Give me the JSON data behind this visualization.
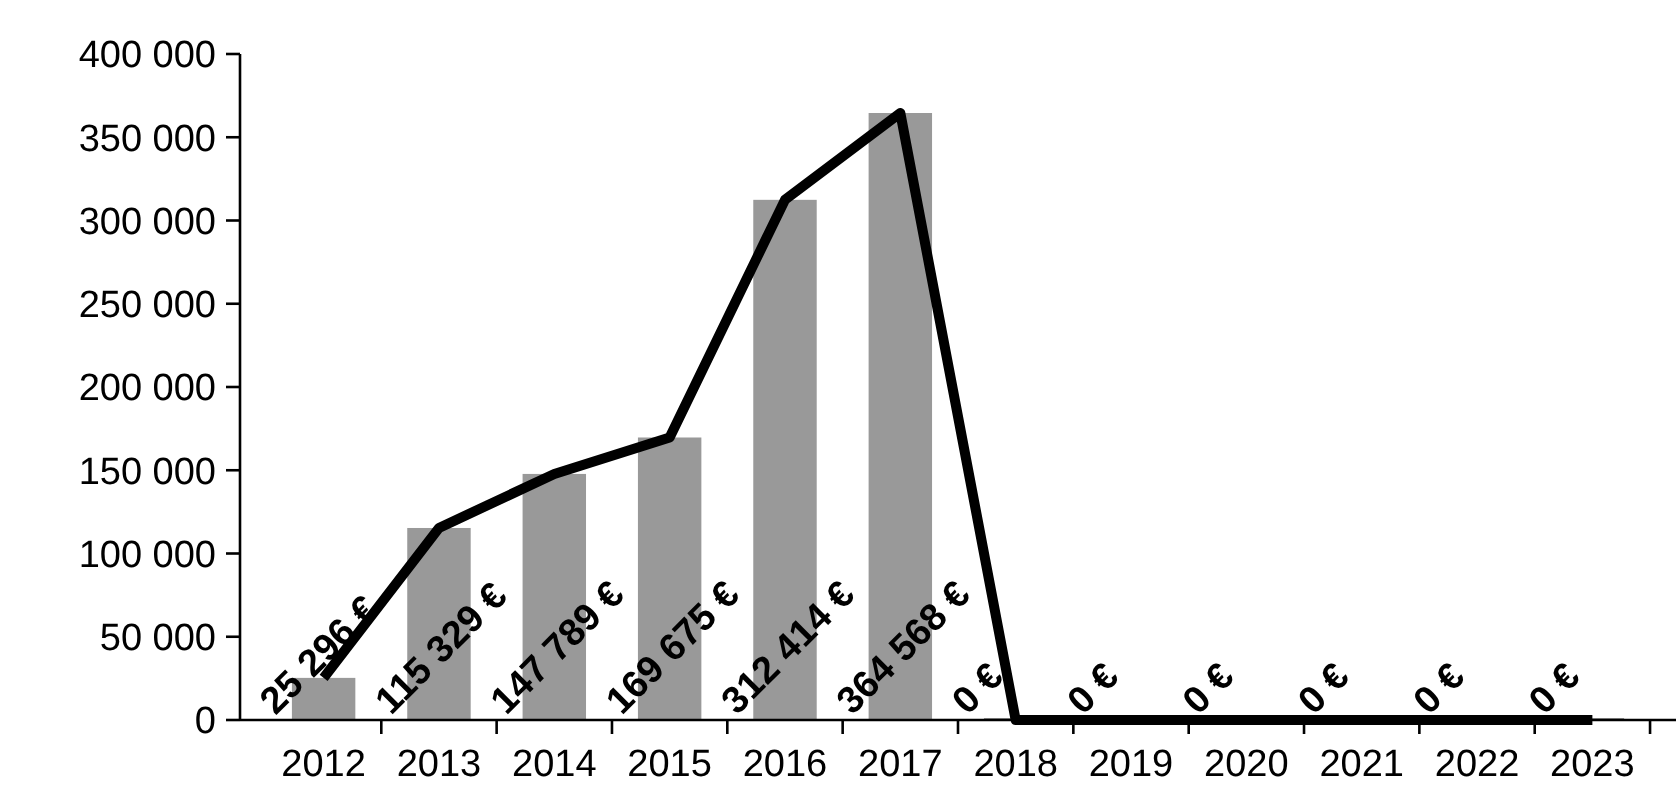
{
  "chart_data": {
    "type": "bar",
    "categories": [
      "2012",
      "2013",
      "2014",
      "2015",
      "2016",
      "2017",
      "2018",
      "2019",
      "2020",
      "2021",
      "2022",
      "2023"
    ],
    "series": [
      {
        "color": "#999999",
        "values": [
          25296,
          115329,
          147789,
          169675,
          312414,
          364568,
          0,
          0,
          0,
          0,
          0,
          0
        ],
        "value_labels": [
          "25 296 €",
          "115 329 €",
          "147 789 €",
          "169 675 €",
          "312 414 €",
          "364 568 €",
          "0 €",
          "0 €",
          "0 €",
          "0 €",
          "0 €",
          "0 €"
        ]
      },
      {
        "type": "line",
        "color": "#000000",
        "values": [
          25296,
          115329,
          147789,
          169675,
          312414,
          364568,
          0,
          0,
          0,
          0,
          0,
          0
        ]
      }
    ],
    "ylim": [
      0,
      400000
    ],
    "yticks": [
      {
        "value": 0,
        "label": "0"
      },
      {
        "value": 50000,
        "label": "50 000"
      },
      {
        "value": 100000,
        "label": "100 000"
      },
      {
        "value": 150000,
        "label": "150 000"
      },
      {
        "value": 200000,
        "label": "200 000"
      },
      {
        "value": 250000,
        "label": "250 000"
      },
      {
        "value": 300000,
        "label": "300 000"
      },
      {
        "value": 350000,
        "label": "350 000"
      },
      {
        "value": 400000,
        "label": "400 000"
      }
    ],
    "grid": false,
    "marker": "none",
    "line_style": "solid"
  }
}
